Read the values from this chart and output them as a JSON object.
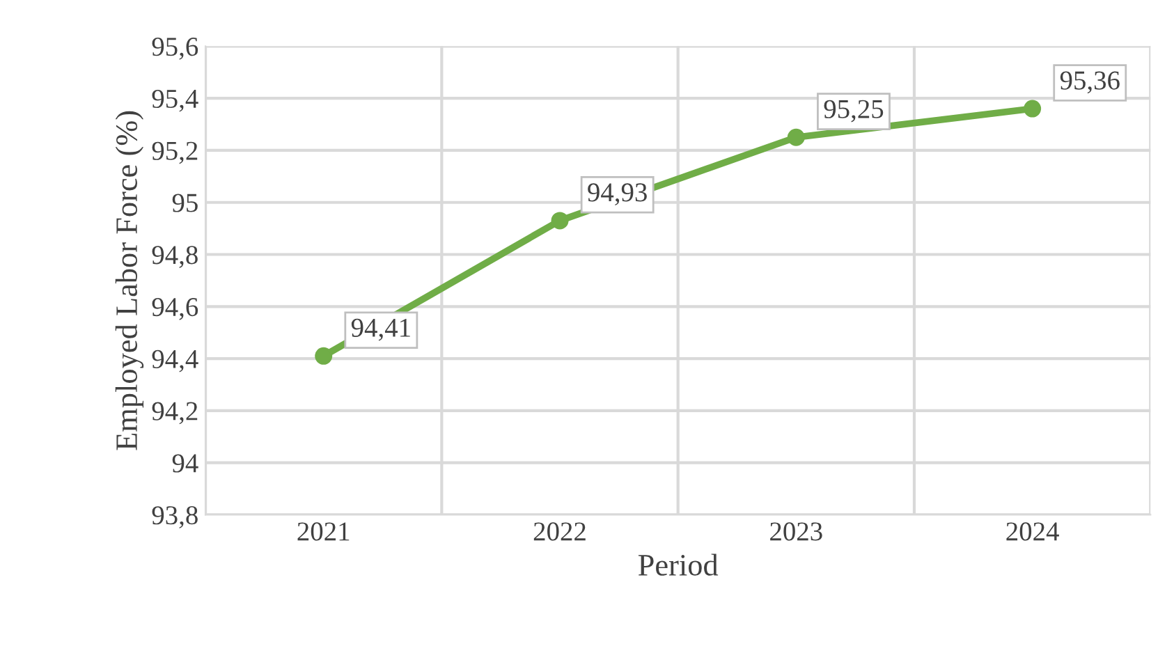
{
  "chart_data": {
    "type": "line",
    "xlabel": "Period",
    "ylabel": "Employed Labor Force (%)",
    "categories": [
      "2021",
      "2022",
      "2023",
      "2024"
    ],
    "series": [
      {
        "color": "#70ad47",
        "values": [
          94.41,
          94.93,
          95.25,
          95.36
        ],
        "value_labels": [
          "94,41",
          "94,93",
          "95,25",
          "95,36"
        ]
      }
    ],
    "ylim": [
      93.8,
      95.6
    ],
    "yticks": [
      {
        "value": 93.8,
        "label": "93,8"
      },
      {
        "value": 94.0,
        "label": "94"
      },
      {
        "value": 94.2,
        "label": "94,2"
      },
      {
        "value": 94.4,
        "label": "94,4"
      },
      {
        "value": 94.6,
        "label": "94,6"
      },
      {
        "value": 94.8,
        "label": "94,8"
      },
      {
        "value": 95.0,
        "label": "95"
      },
      {
        "value": 95.2,
        "label": "95,2"
      },
      {
        "value": 95.4,
        "label": "95,4"
      },
      {
        "value": 95.6,
        "label": "95,6"
      }
    ],
    "grid": true,
    "marker": "circle",
    "line_style": "solid"
  }
}
